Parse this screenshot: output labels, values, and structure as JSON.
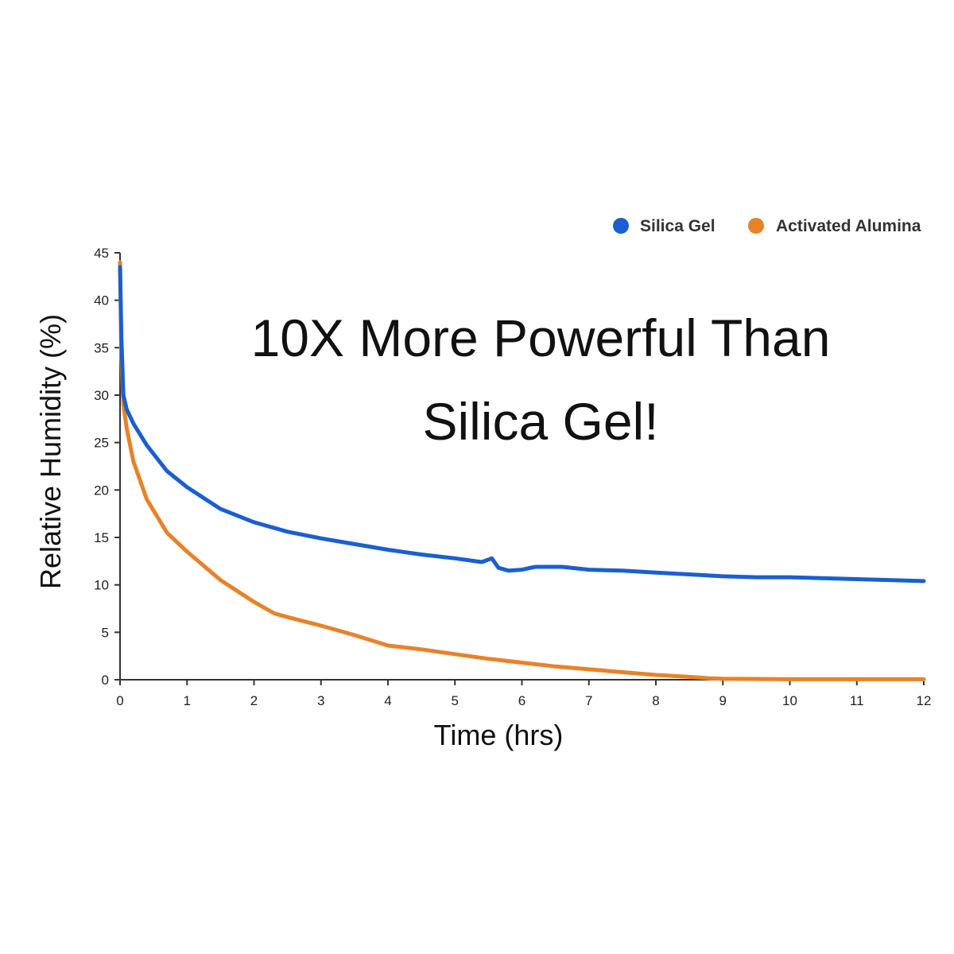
{
  "headline": {
    "line1": "10X More Powerful Than",
    "line2": "Silica Gel!"
  },
  "chart_data": {
    "type": "line",
    "xlabel": "Time (hrs)",
    "ylabel": "Relative Humidity (%)",
    "xlim": [
      0,
      12
    ],
    "ylim": [
      0,
      45
    ],
    "x_ticks": [
      "0",
      "1",
      "2",
      "3",
      "4",
      "5",
      "6",
      "7",
      "8",
      "9",
      "10",
      "11",
      "12"
    ],
    "y_ticks": [
      "0",
      "5",
      "10",
      "15",
      "20",
      "25",
      "30",
      "35",
      "40",
      "45"
    ],
    "grid": false,
    "legend_position": "top-right",
    "series": [
      {
        "name": "Silica Gel",
        "color": "#1a5fd1",
        "x": [
          0,
          0.02,
          0.05,
          0.1,
          0.2,
          0.4,
          0.7,
          1.0,
          1.5,
          2.0,
          2.5,
          3.0,
          3.5,
          4.0,
          4.5,
          5.0,
          5.4,
          5.55,
          5.65,
          5.8,
          6.0,
          6.2,
          6.6,
          7.0,
          7.5,
          8.0,
          8.5,
          9.0,
          9.5,
          10.0,
          11.0,
          12.0
        ],
        "y": [
          43.5,
          36,
          30,
          28.5,
          27,
          24.7,
          22,
          20.3,
          18,
          16.6,
          15.6,
          14.9,
          14.3,
          13.7,
          13.2,
          12.8,
          12.4,
          12.8,
          11.8,
          11.5,
          11.6,
          11.9,
          11.9,
          11.6,
          11.5,
          11.3,
          11.1,
          10.9,
          10.8,
          10.8,
          10.6,
          10.4
        ]
      },
      {
        "name": "Activated Alumina",
        "color": "#e8822a",
        "x": [
          0,
          0.02,
          0.05,
          0.1,
          0.2,
          0.4,
          0.7,
          1.0,
          1.5,
          2.0,
          2.3,
          2.5,
          3.0,
          3.5,
          4.0,
          4.5,
          5.0,
          5.5,
          6.0,
          6.5,
          7.0,
          7.5,
          8.0,
          8.5,
          8.8,
          9.0,
          10.0,
          11.0,
          12.0
        ],
        "y": [
          44,
          34,
          29,
          26.5,
          23,
          19,
          15.5,
          13.5,
          10.5,
          8.2,
          7.0,
          6.6,
          5.7,
          4.7,
          3.6,
          3.2,
          2.7,
          2.2,
          1.8,
          1.4,
          1.1,
          0.8,
          0.5,
          0.3,
          0.15,
          0.1,
          0.05,
          0.05,
          0.05
        ]
      }
    ]
  }
}
